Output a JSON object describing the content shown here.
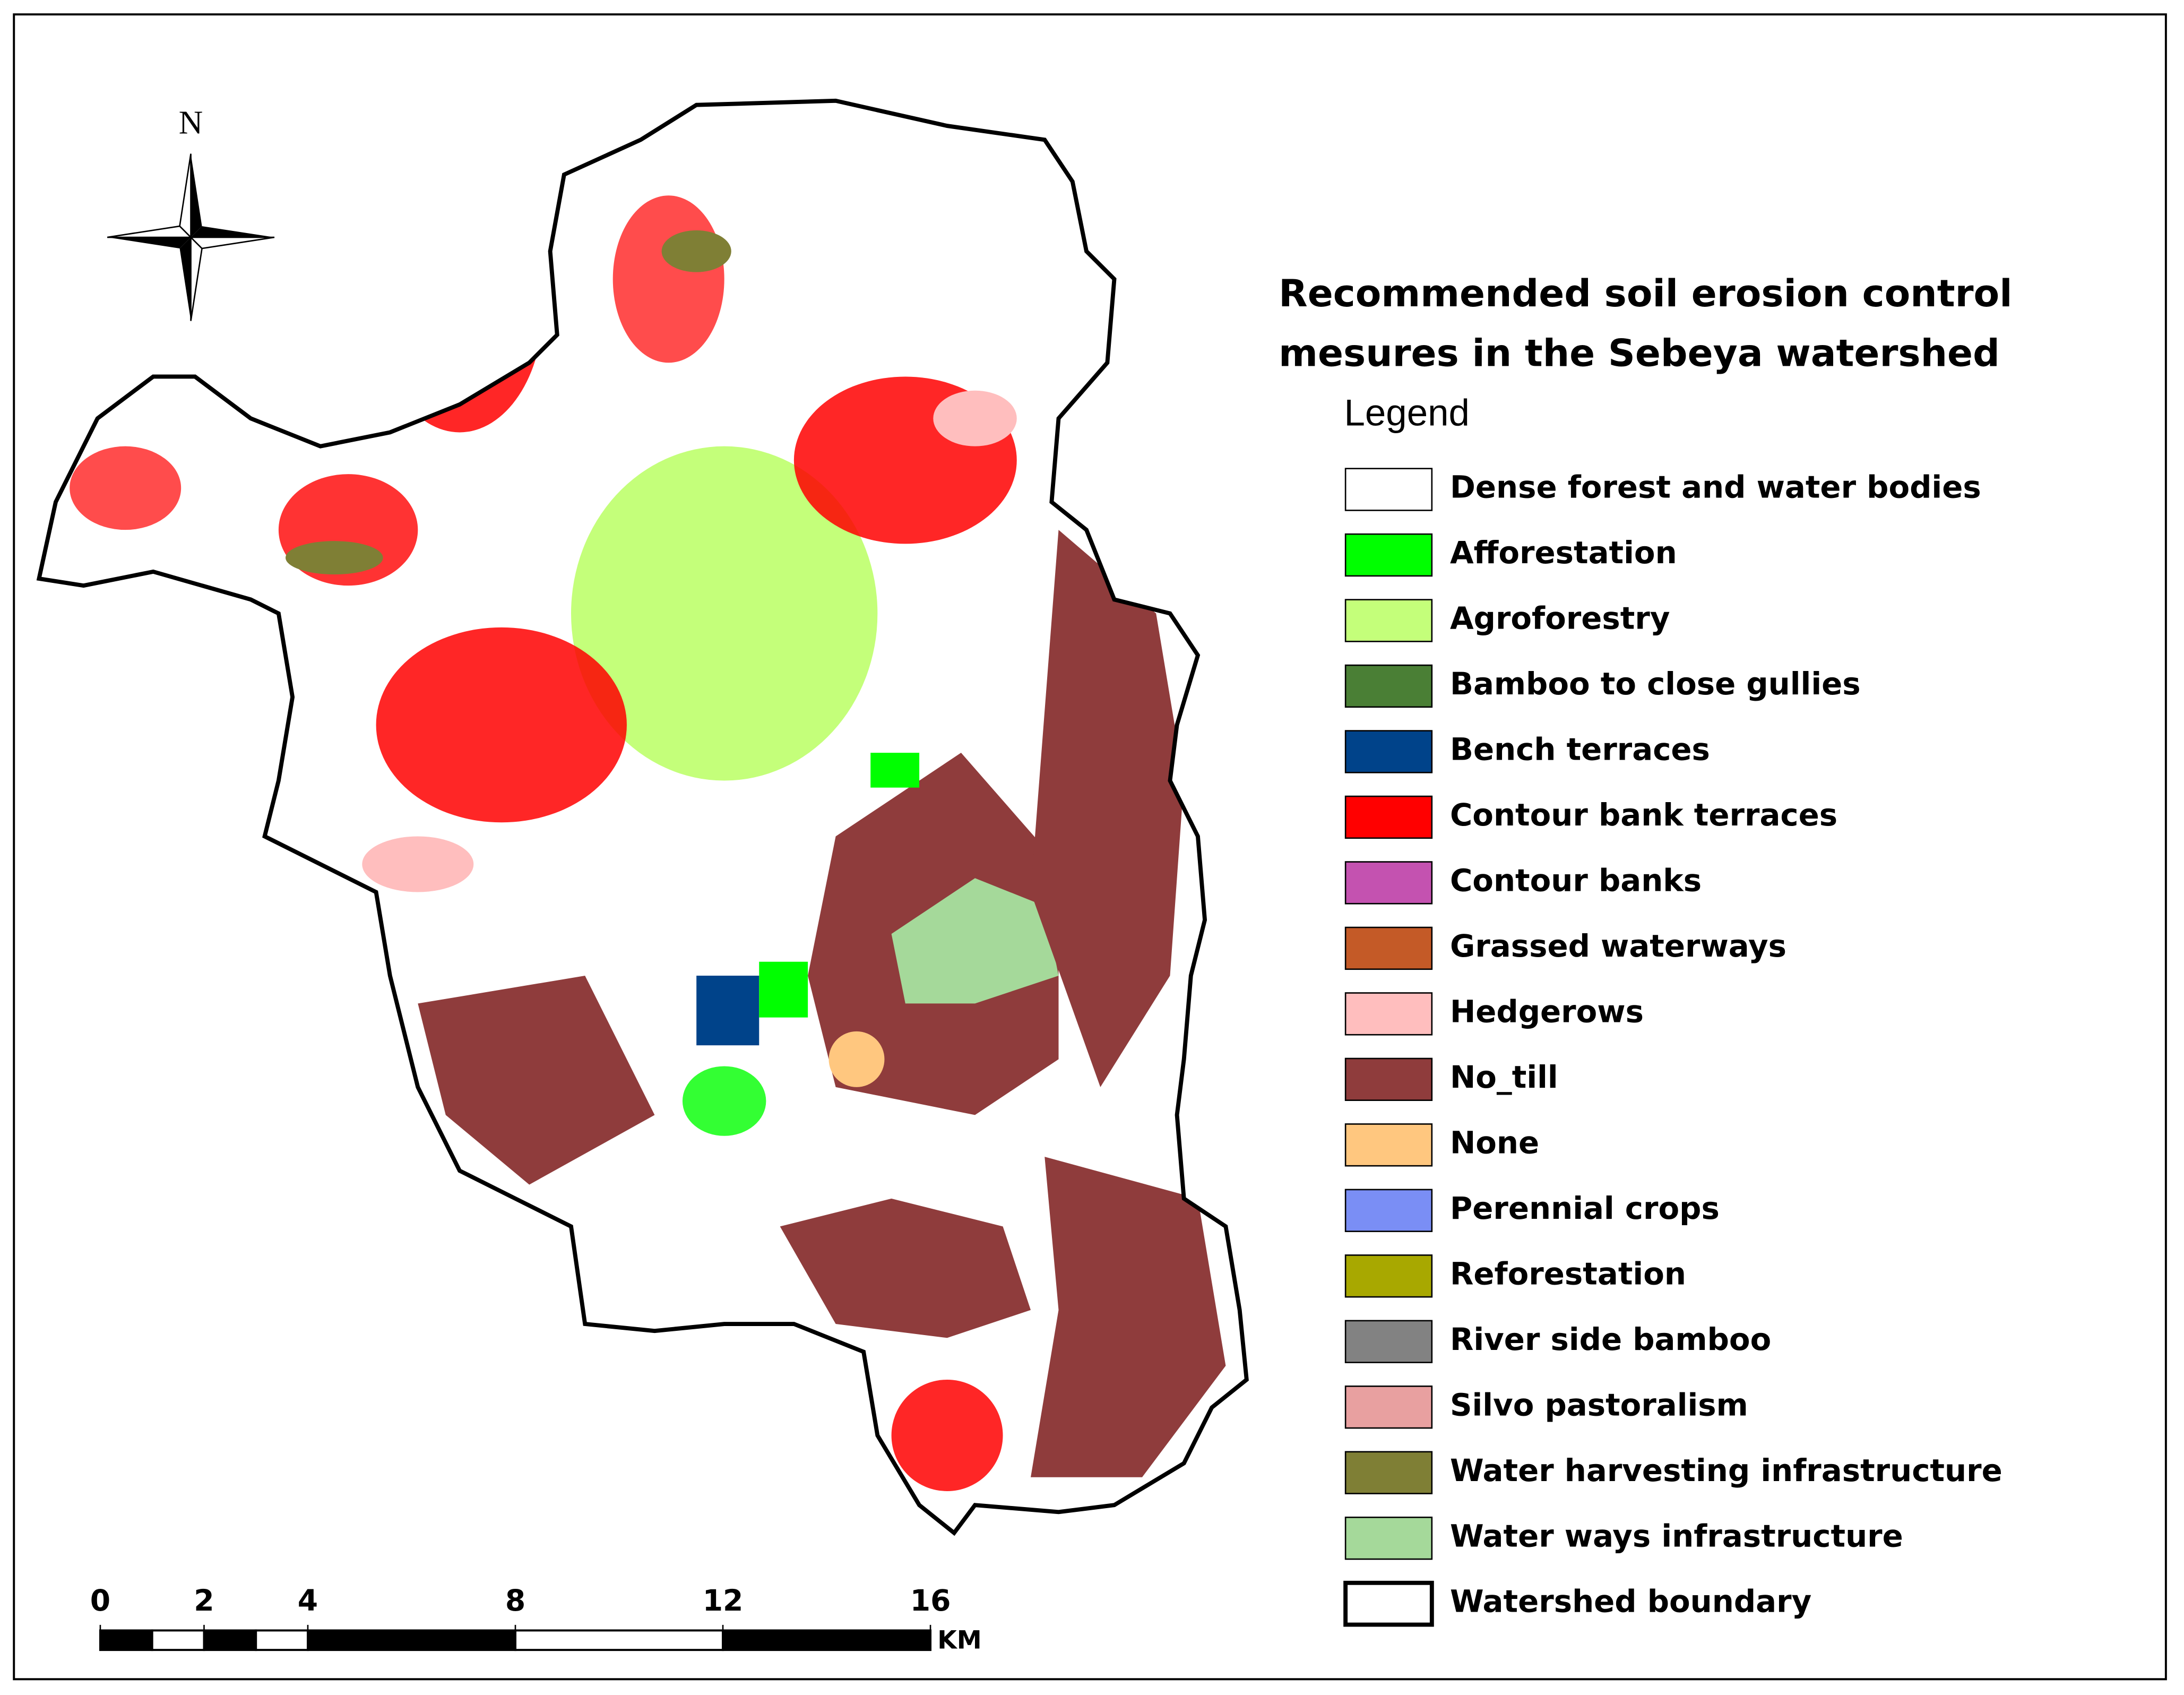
{
  "map": {
    "title_lines": [
      "Recommended soil erosion control",
      "mesures in the Sebeya watershed"
    ],
    "north_label": "N",
    "legend": {
      "title": "Legend",
      "items": [
        {
          "name": "Dense forest and water bodies",
          "color": "#ffffff",
          "style": "fill"
        },
        {
          "name": "Afforestation",
          "color": "#00ff00",
          "style": "fill"
        },
        {
          "name": "Agroforestry",
          "color": "#c4ff7a",
          "style": "fill"
        },
        {
          "name": "Bamboo to close gullies",
          "color": "#4a7f35",
          "style": "fill"
        },
        {
          "name": "Bench terraces",
          "color": "#00438a",
          "style": "fill"
        },
        {
          "name": "Contour bank terraces",
          "color": "#ff0000",
          "style": "fill"
        },
        {
          "name": "Contour banks",
          "color": "#c452b0",
          "style": "fill"
        },
        {
          "name": "Grassed waterways",
          "color": "#c45a27",
          "style": "fill"
        },
        {
          "name": "Hedgerows",
          "color": "#ffbebe",
          "style": "fill"
        },
        {
          "name": "No_till",
          "color": "#8f3c3c",
          "style": "fill"
        },
        {
          "name": "None",
          "color": "#ffc77f",
          "style": "fill"
        },
        {
          "name": "Perennial crops",
          "color": "#7a8ef5",
          "style": "fill"
        },
        {
          "name": "Reforestation",
          "color": "#a8a800",
          "style": "fill"
        },
        {
          "name": "River side bamboo",
          "color": "#828282",
          "style": "fill"
        },
        {
          "name": "Silvo pastoralism",
          "color": "#e8a0a0",
          "style": "fill"
        },
        {
          "name": "Water harvesting infrastructure",
          "color": "#7f7f35",
          "style": "fill"
        },
        {
          "name": "Water ways infrastructure",
          "color": "#a5d99a",
          "style": "fill"
        },
        {
          "name": "Watershed boundary",
          "color": "#000000",
          "style": "outline"
        }
      ]
    },
    "scale_bar": {
      "ticks": [
        0,
        2,
        4,
        8,
        12,
        16
      ],
      "unit": "KM"
    }
  }
}
